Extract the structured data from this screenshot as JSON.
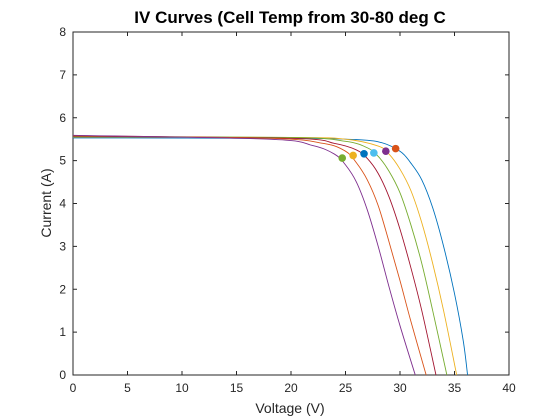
{
  "chart_data": {
    "type": "line",
    "title": "IV Curves (Cell Temp from 30-80 deg C",
    "xlabel": "Voltage (V)",
    "ylabel": "Current (A)",
    "xlim": [
      0,
      40
    ],
    "ylim": [
      0,
      8
    ],
    "xticks": [
      0,
      5,
      10,
      15,
      20,
      25,
      30,
      35,
      40
    ],
    "yticks": [
      0,
      1,
      2,
      3,
      4,
      5,
      6,
      7,
      8
    ],
    "grid": false,
    "series": [
      {
        "color": "#0072BD",
        "isc": 5.53,
        "voc": 36.2,
        "mpp": [
          29.6,
          5.28
        ],
        "mpp_color": "#D95319",
        "points": [
          [
            0,
            5.53
          ],
          [
            20,
            5.52
          ],
          [
            25,
            5.5
          ],
          [
            28,
            5.44
          ],
          [
            30,
            5.22
          ],
          [
            31,
            4.94
          ],
          [
            32,
            4.55
          ],
          [
            33,
            3.9
          ],
          [
            34,
            3.0
          ],
          [
            35,
            1.9
          ],
          [
            35.8,
            0.8
          ],
          [
            36.2,
            0
          ]
        ]
      },
      {
        "color": "#EDB120",
        "isc": 5.55,
        "voc": 35.2,
        "mpp": [
          28.7,
          5.22
        ],
        "mpp_color": "#7E2F8E",
        "points": [
          [
            0,
            5.55
          ],
          [
            20,
            5.54
          ],
          [
            25,
            5.5
          ],
          [
            28,
            5.34
          ],
          [
            29,
            5.15
          ],
          [
            30,
            4.8
          ],
          [
            31,
            4.3
          ],
          [
            32,
            3.55
          ],
          [
            33,
            2.6
          ],
          [
            34,
            1.5
          ],
          [
            35.2,
            0
          ]
        ]
      },
      {
        "color": "#77AC30",
        "isc": 5.56,
        "voc": 34.3,
        "mpp": [
          27.6,
          5.18
        ],
        "mpp_color": "#4DBEEE",
        "points": [
          [
            0,
            5.56
          ],
          [
            20,
            5.54
          ],
          [
            25,
            5.45
          ],
          [
            27,
            5.3
          ],
          [
            28,
            5.1
          ],
          [
            29,
            4.75
          ],
          [
            30,
            4.25
          ],
          [
            31,
            3.5
          ],
          [
            32,
            2.6
          ],
          [
            33,
            1.5
          ],
          [
            34.3,
            0
          ]
        ]
      },
      {
        "color": "#A2142F",
        "isc": 5.57,
        "voc": 33.3,
        "mpp": [
          26.7,
          5.16
        ],
        "mpp_color": "#0072BD",
        "points": [
          [
            0,
            5.57
          ],
          [
            20,
            5.52
          ],
          [
            24,
            5.4
          ],
          [
            26,
            5.25
          ],
          [
            27,
            5.05
          ],
          [
            28,
            4.7
          ],
          [
            29,
            4.15
          ],
          [
            30,
            3.4
          ],
          [
            31,
            2.5
          ],
          [
            32,
            1.5
          ],
          [
            33.3,
            0
          ]
        ]
      },
      {
        "color": "#D95319",
        "isc": 5.58,
        "voc": 32.4,
        "mpp": [
          25.7,
          5.12
        ],
        "mpp_color": "#EDB120",
        "points": [
          [
            0,
            5.58
          ],
          [
            18,
            5.52
          ],
          [
            23,
            5.4
          ],
          [
            25,
            5.22
          ],
          [
            26,
            4.95
          ],
          [
            27,
            4.55
          ],
          [
            28,
            3.95
          ],
          [
            29,
            3.1
          ],
          [
            30,
            2.2
          ],
          [
            31,
            1.25
          ],
          [
            32.4,
            0
          ]
        ]
      },
      {
        "color": "#7E2F8E",
        "isc": 5.59,
        "voc": 31.4,
        "mpp": [
          24.7,
          5.06
        ],
        "mpp_color": "#77AC30",
        "points": [
          [
            0,
            5.59
          ],
          [
            18,
            5.5
          ],
          [
            22,
            5.35
          ],
          [
            24,
            5.15
          ],
          [
            25,
            4.9
          ],
          [
            26,
            4.5
          ],
          [
            27,
            3.85
          ],
          [
            28,
            3.0
          ],
          [
            29,
            2.05
          ],
          [
            30,
            1.15
          ],
          [
            31.4,
            0
          ]
        ]
      }
    ]
  }
}
